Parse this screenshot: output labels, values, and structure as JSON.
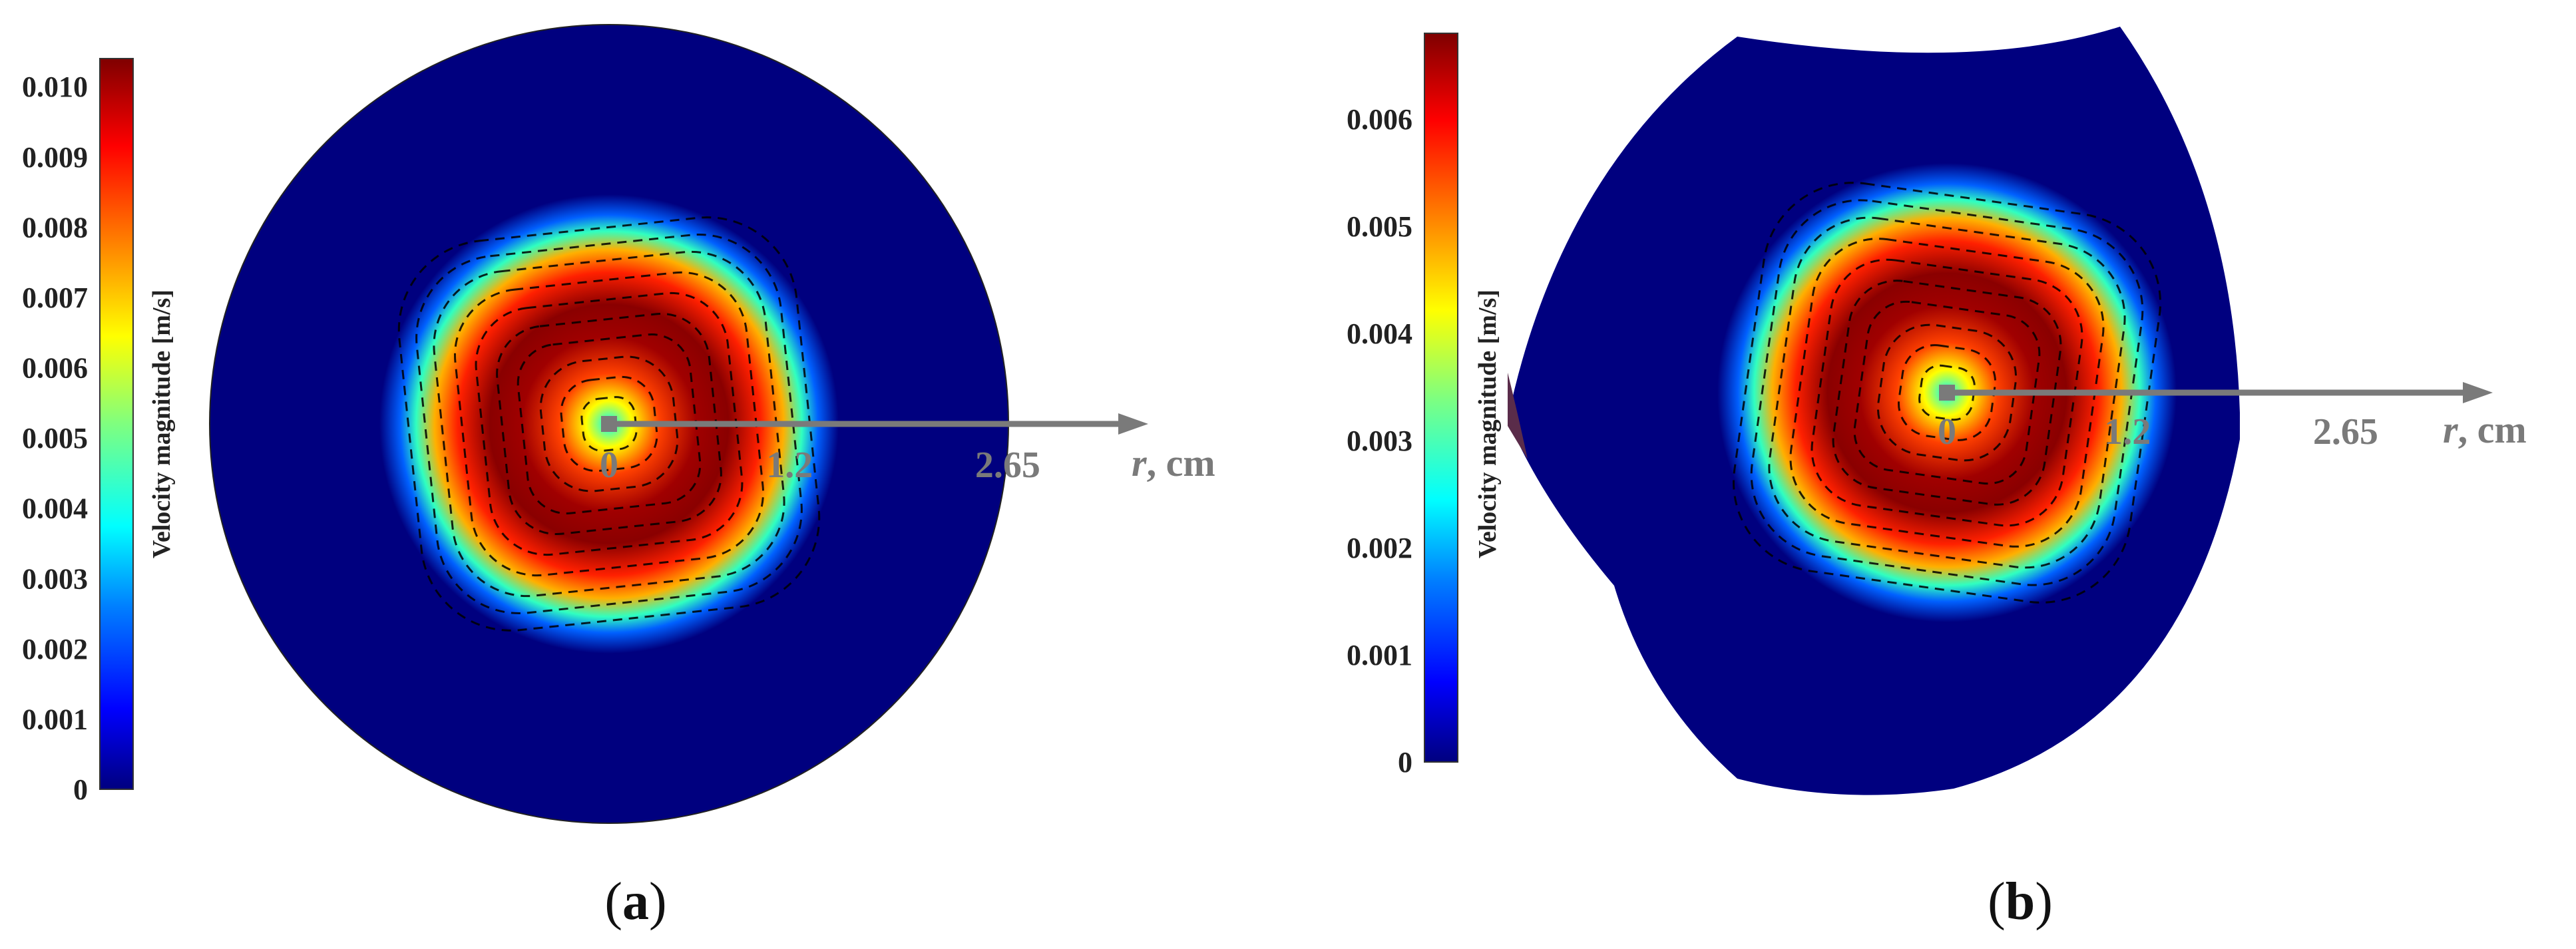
{
  "chart_data": [
    {
      "type": "heatmap",
      "panel": "a",
      "caption_label": "a",
      "colorbar": {
        "label": "Velocity magnitude [m/s]",
        "range": [
          0,
          0.0104
        ],
        "ticks": [
          0,
          0.001,
          0.002,
          0.003,
          0.004,
          0.005,
          0.006,
          0.007,
          0.008,
          0.009,
          0.01
        ],
        "tick_labels": [
          "0",
          "0.001",
          "0.002",
          "0.003",
          "0.004",
          "0.005",
          "0.006",
          "0.007",
          "0.008",
          "0.009",
          "0.010"
        ]
      },
      "domain_shape": "circle",
      "r_axis": {
        "label": "r",
        "unit": ", cm",
        "marks": [
          {
            "value": 0,
            "label": "0"
          },
          {
            "value": 1.2,
            "label": "1.2"
          },
          {
            "value": 2.65,
            "label": "2.65"
          }
        ]
      },
      "vortex": {
        "peak_velocity": 0.0102,
        "peak_radius_cm": 0.65,
        "outer_edge_cm": 1.3
      },
      "streamlines": "dashed concentric loops around the centre"
    },
    {
      "type": "heatmap",
      "panel": "b",
      "caption_label": "b",
      "colorbar": {
        "label": "Velocity magnitude [m/s]",
        "range": [
          0,
          0.0068
        ],
        "ticks": [
          0,
          0.001,
          0.002,
          0.003,
          0.004,
          0.005,
          0.006
        ],
        "tick_labels": [
          "0",
          "0.001",
          "0.002",
          "0.003",
          "0.004",
          "0.005",
          "0.006"
        ]
      },
      "domain_shape": "circle with concave cuts (top and lower-left)",
      "r_axis": {
        "label": "r",
        "unit": ", cm",
        "marks": [
          {
            "value": 0,
            "label": "0"
          },
          {
            "value": 1.2,
            "label": "1.2"
          },
          {
            "value": 2.65,
            "label": "2.65"
          }
        ]
      },
      "vortex": {
        "peak_velocity": 0.0066,
        "peak_radius_cm": 0.65,
        "outer_edge_cm": 1.3
      },
      "streamlines": "dashed concentric loops around the centre"
    }
  ],
  "colors": {
    "jet_stops": [
      "#00007f",
      "#0000ff",
      "#007fff",
      "#00ffff",
      "#7fff7f",
      "#ffff00",
      "#ff7f00",
      "#ff0000",
      "#7f0000"
    ],
    "background_flow": "#00007f",
    "axis_arrow": "#7a7a7a"
  }
}
